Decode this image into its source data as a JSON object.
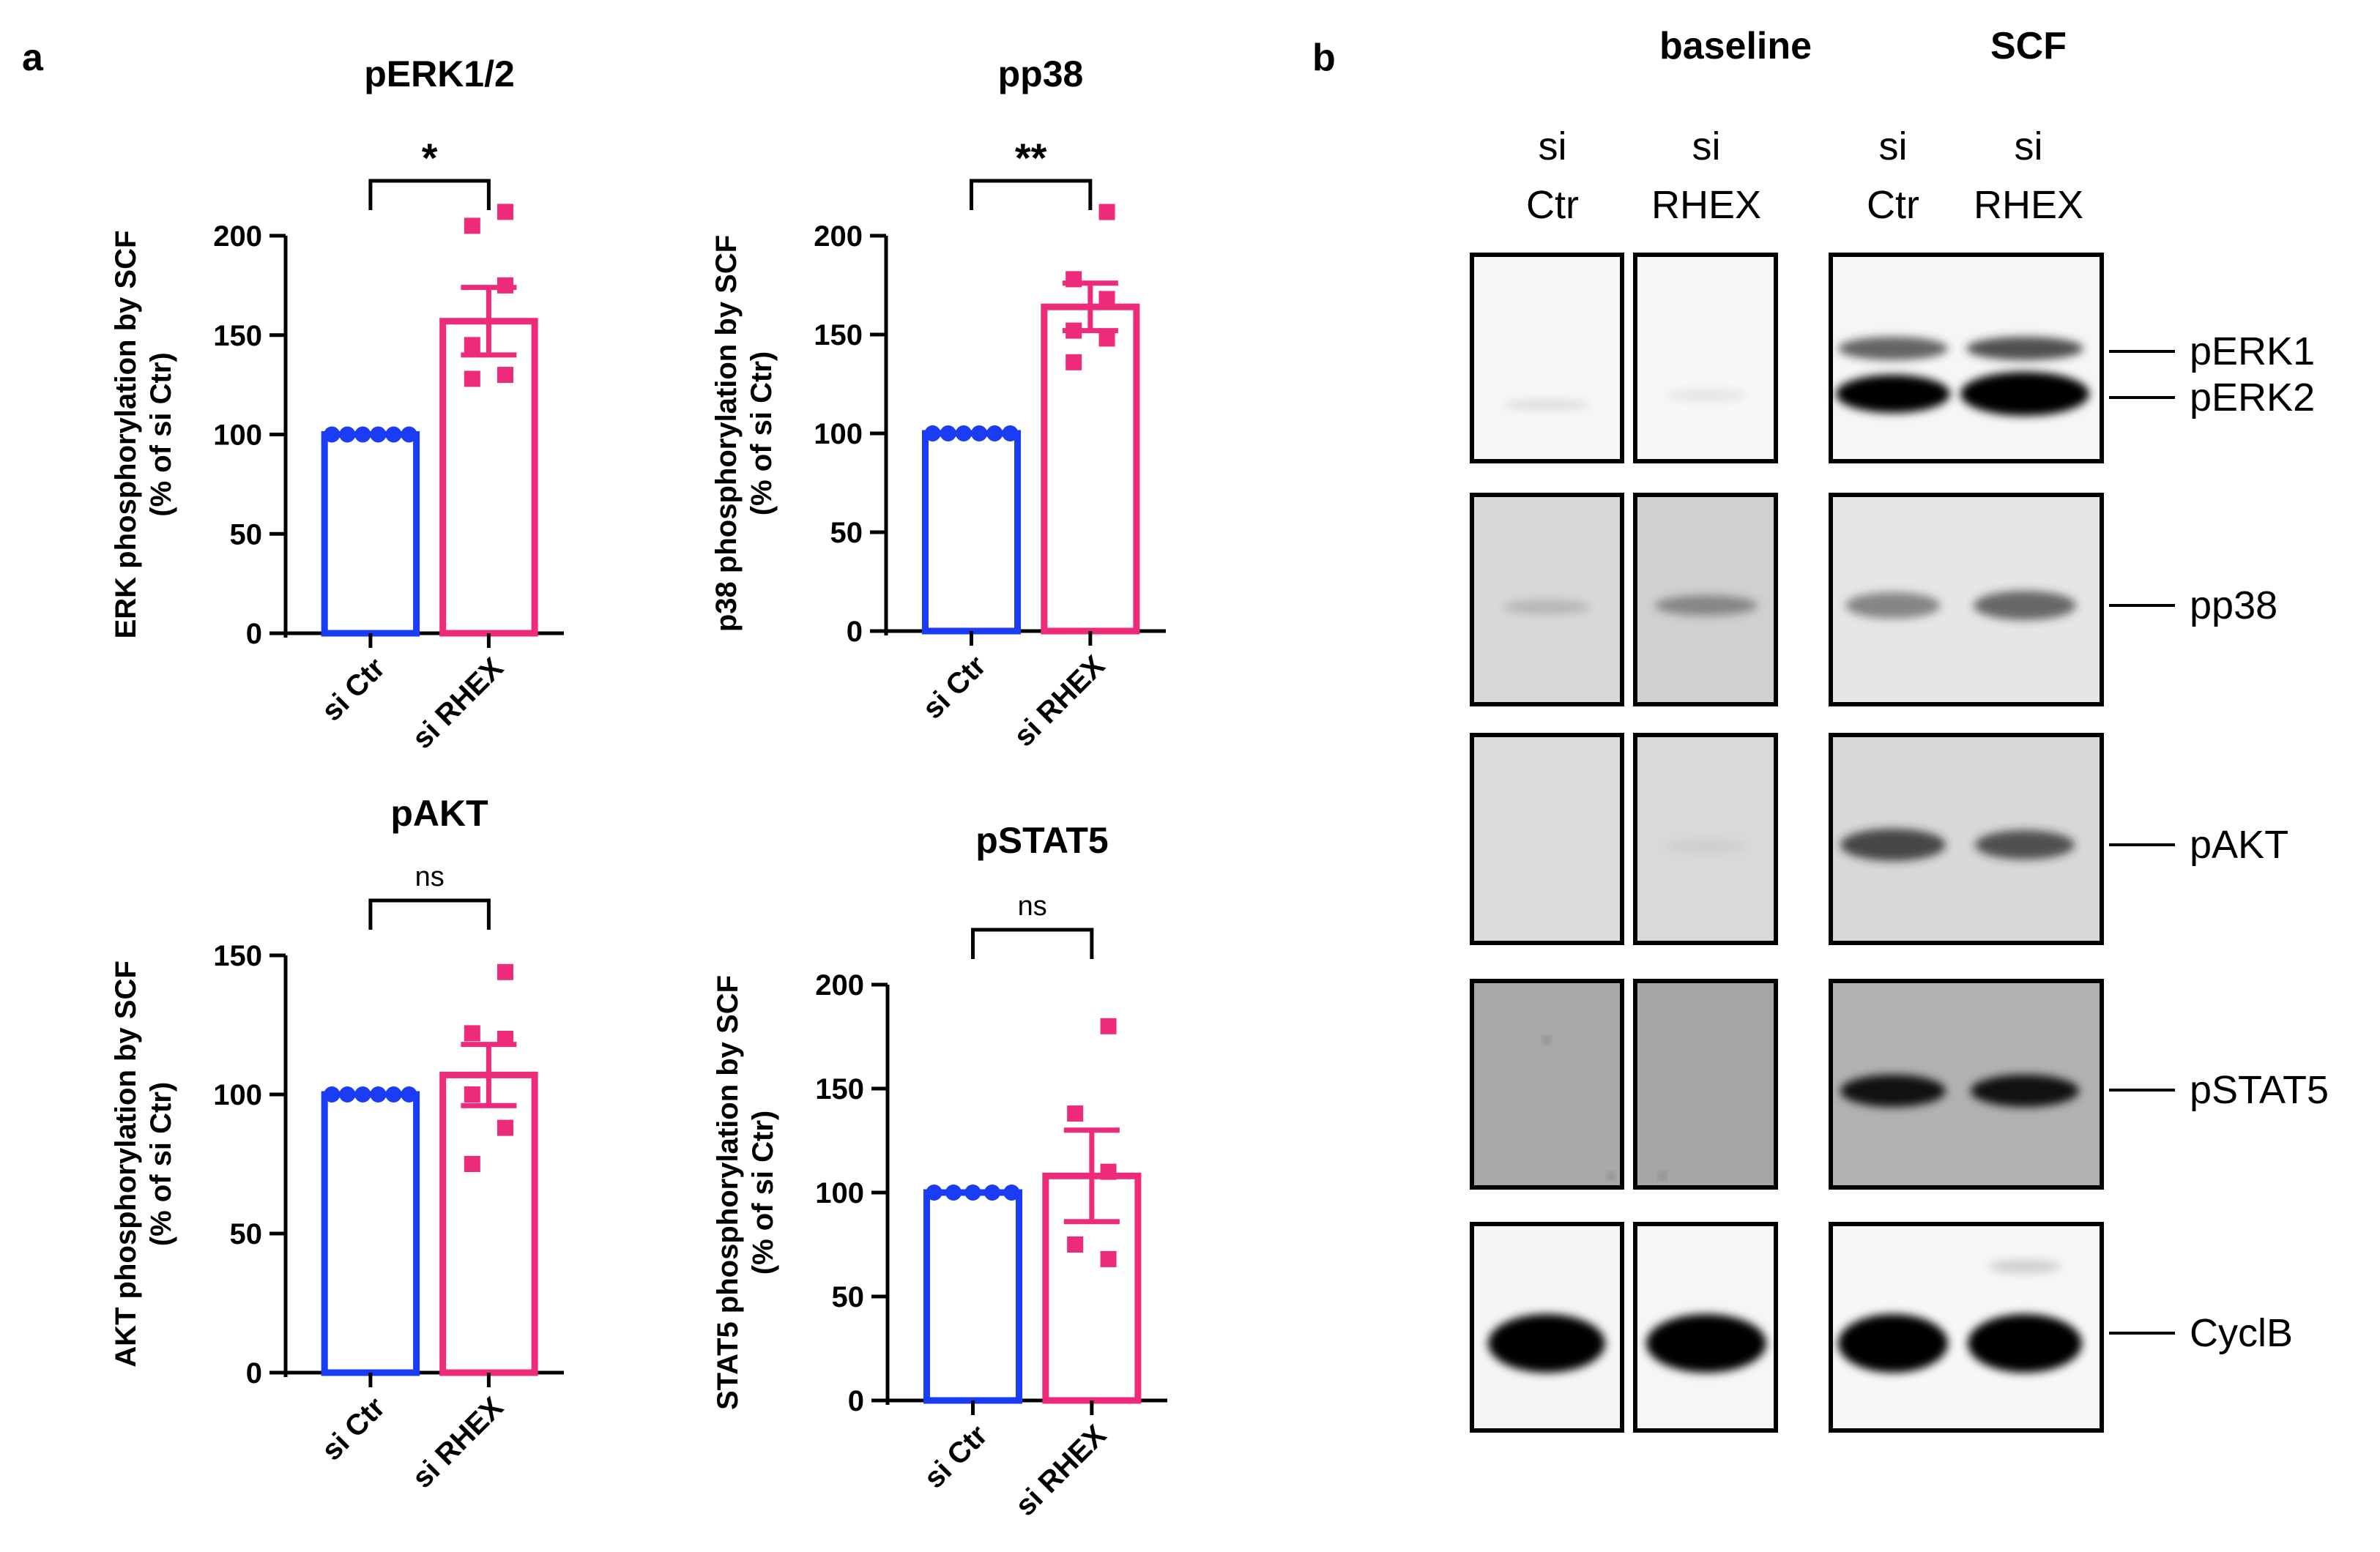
{
  "figure": {
    "panel_a_label": "a",
    "panel_b_label": "b"
  },
  "chart_data": [
    {
      "type": "bar",
      "title": "pERK1/2",
      "ylabel_line1": "ERK phosphorylation by SCF",
      "ylabel_line2": "(% of si Ctr)",
      "categories": [
        "si Ctr",
        "si RHEX"
      ],
      "values": [
        100,
        157
      ],
      "sem": [
        0,
        17
      ],
      "points": [
        [
          100,
          100,
          100,
          100,
          100,
          100
        ],
        [
          212,
          205,
          175,
          145,
          130,
          128
        ]
      ],
      "ylim": [
        0,
        200
      ],
      "yticks": [
        0,
        50,
        100,
        150,
        200
      ],
      "significance": "*",
      "colors": [
        "#1a3cf5",
        "#ee2b7b"
      ]
    },
    {
      "type": "bar",
      "title": "pp38",
      "ylabel_line1": "p38 phosphorylation by SCF",
      "ylabel_line2": "(% of si Ctr)",
      "categories": [
        "si Ctr",
        "si RHEX"
      ],
      "values": [
        100,
        164
      ],
      "sem": [
        0,
        12
      ],
      "points": [
        [
          100,
          100,
          100,
          100,
          100,
          100
        ],
        [
          212,
          178,
          168,
          152,
          148,
          136
        ]
      ],
      "ylim": [
        0,
        200
      ],
      "yticks": [
        0,
        50,
        100,
        150,
        200
      ],
      "significance": "**",
      "colors": [
        "#1a3cf5",
        "#ee2b7b"
      ]
    },
    {
      "type": "bar",
      "title": "pAKT",
      "ylabel_line1": "AKT phosphorylation by SCF",
      "ylabel_line2": "(% of si Ctr)",
      "categories": [
        "si Ctr",
        "si RHEX"
      ],
      "values": [
        100,
        107
      ],
      "sem": [
        0,
        11
      ],
      "points": [
        [
          100,
          100,
          100,
          100,
          100,
          100
        ],
        [
          144,
          122,
          120,
          100,
          88,
          75
        ]
      ],
      "ylim": [
        0,
        150
      ],
      "yticks": [
        0,
        50,
        100,
        150
      ],
      "significance": "ns",
      "colors": [
        "#1a3cf5",
        "#ee2b7b"
      ]
    },
    {
      "type": "bar",
      "title": "pSTAT5",
      "ylabel_line1": "STAT5 phosphorylation by SCF",
      "ylabel_line2": "(% of si Ctr)",
      "categories": [
        "si Ctr",
        "si RHEX"
      ],
      "values": [
        100,
        108
      ],
      "sem": [
        0,
        22
      ],
      "points": [
        [
          100,
          100,
          100,
          100,
          100
        ],
        [
          180,
          138,
          110,
          75,
          68
        ]
      ],
      "ylim": [
        0,
        200
      ],
      "yticks": [
        0,
        50,
        100,
        150,
        200
      ],
      "significance": "ns",
      "colors": [
        "#1a3cf5",
        "#ee2b7b"
      ]
    }
  ],
  "blot": {
    "group_labels": [
      "baseline",
      "SCF"
    ],
    "lane_labels": [
      {
        "line1": "si",
        "line2": "Ctr"
      },
      {
        "line1": "si",
        "line2": "RHEX"
      },
      {
        "line1": "si",
        "line2": "Ctr"
      },
      {
        "line1": "si",
        "line2": "RHEX"
      }
    ],
    "rows": [
      {
        "labels": [
          "pERK1",
          "pERK2"
        ]
      },
      {
        "labels": [
          "pp38"
        ]
      },
      {
        "labels": [
          "pAKT"
        ]
      },
      {
        "labels": [
          "pSTAT5"
        ]
      },
      {
        "labels": [
          "CyclB"
        ]
      }
    ]
  }
}
